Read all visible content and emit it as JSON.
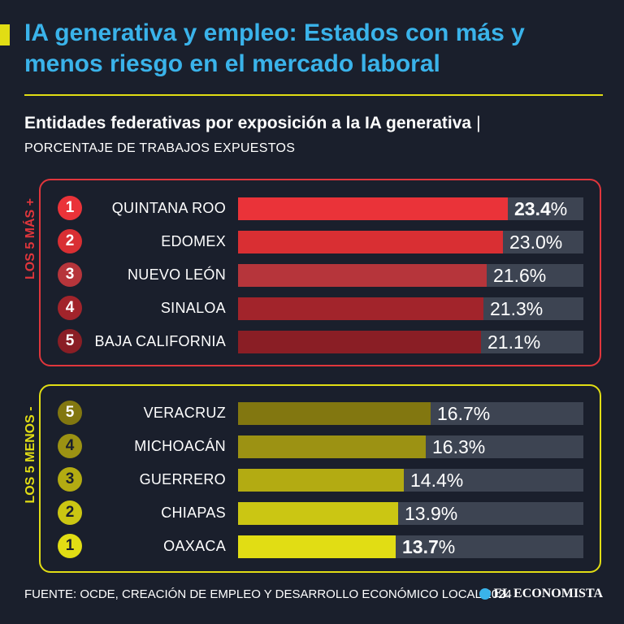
{
  "title": "IA generativa y empleo: Estados con más y menos riesgo en el mercado laboral",
  "subtitle": "Entidades federativas por exposición a la IA generativa",
  "subtitle_sep": "|",
  "unit_label": "PORCENTAJE DE TRABAJOS EXPUESTOS",
  "groups": {
    "top": {
      "label": "LOS 5 MÁS +"
    },
    "bottom": {
      "label": "LOS 5 MENOS -"
    }
  },
  "source": "FUENTE: OCDE, CREACIÓN DE EMPLEO Y DESARROLLO ECONÓMICO LOCAL 2024",
  "brand": "EL ECONOMISTA",
  "colors": {
    "background": "#1a1f2c",
    "title": "#3ab3ea",
    "accent": "#e1dd14",
    "track": "#3d4452",
    "top_border": "#e0363c"
  },
  "chart_data": {
    "type": "bar",
    "orientation": "horizontal",
    "unit": "%",
    "xlim": [
      0,
      30
    ],
    "rows": [
      {
        "rank": "1",
        "state": "QUINTANA ROO",
        "value": 23.4,
        "label": "23.4",
        "group": "top",
        "color": "#ea3339",
        "rank_color": "#ea3339",
        "rank_text": "#ffffff",
        "bold": true
      },
      {
        "rank": "2",
        "state": "EDOMEX",
        "value": 23.0,
        "label": "23.0",
        "group": "top",
        "color": "#d92f33",
        "rank_color": "#d92f33",
        "rank_text": "#ffffff",
        "bold": false
      },
      {
        "rank": "3",
        "state": "NUEVO LEÓN",
        "value": 21.6,
        "label": "21.6",
        "group": "top",
        "color": "#b6353b",
        "rank_color": "#b6353b",
        "rank_text": "#ffffff",
        "bold": false
      },
      {
        "rank": "4",
        "state": "SINALOA",
        "value": 21.3,
        "label": "21.3",
        "group": "top",
        "color": "#a2242b",
        "rank_color": "#a2242b",
        "rank_text": "#ffffff",
        "bold": false
      },
      {
        "rank": "5",
        "state": "BAJA CALIFORNIA",
        "value": 21.1,
        "label": "21.1",
        "group": "top",
        "color": "#8a1e25",
        "rank_color": "#8a1e25",
        "rank_text": "#ffffff",
        "bold": false
      },
      {
        "rank": "5",
        "state": "VERACRUZ",
        "value": 16.7,
        "label": "16.7",
        "group": "bottom",
        "color": "#827710",
        "rank_color": "#827710",
        "rank_text": "#ffffff",
        "bold": false
      },
      {
        "rank": "4",
        "state": "MICHOACÁN",
        "value": 16.3,
        "label": "16.3",
        "group": "bottom",
        "color": "#9c9213",
        "rank_color": "#9c9213",
        "rank_text": "#1a1f2c",
        "bold": false
      },
      {
        "rank": "3",
        "state": "GUERRERO",
        "value": 14.4,
        "label": "14.4",
        "group": "bottom",
        "color": "#b3ab12",
        "rank_color": "#b3ab12",
        "rank_text": "#1a1f2c",
        "bold": false
      },
      {
        "rank": "2",
        "state": "CHIAPAS",
        "value": 13.9,
        "label": "13.9",
        "group": "bottom",
        "color": "#cbc613",
        "rank_color": "#cbc613",
        "rank_text": "#1a1f2c",
        "bold": false
      },
      {
        "rank": "1",
        "state": "OAXACA",
        "value": 13.7,
        "label": "13.7",
        "group": "bottom",
        "color": "#e1dd14",
        "rank_color": "#e1dd14",
        "rank_text": "#1a1f2c",
        "bold": true
      }
    ]
  }
}
